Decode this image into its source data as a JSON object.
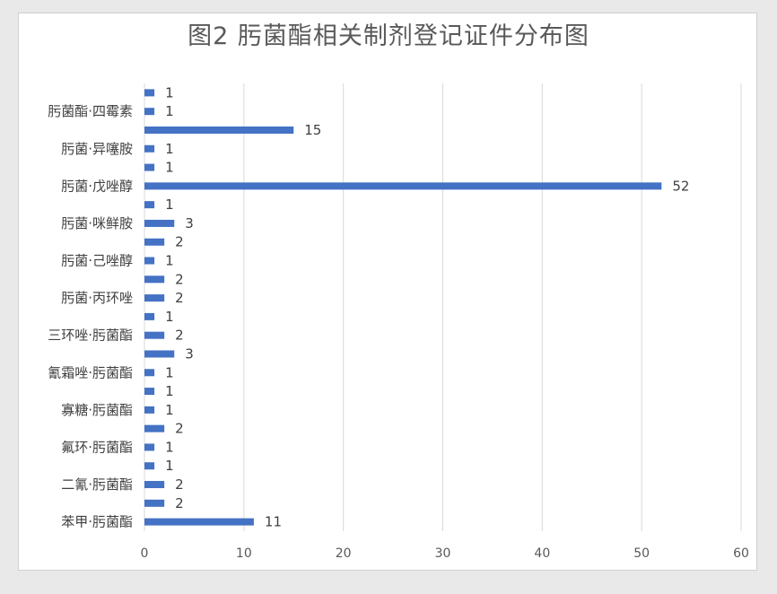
{
  "chart_data": {
    "type": "bar",
    "orientation": "horizontal",
    "title": "图2 肟菌酯相关制剂登记证件分布图",
    "xlim": [
      0,
      60
    ],
    "xticks": [
      0,
      10,
      20,
      30,
      40,
      50,
      60
    ],
    "grid": "vertical",
    "color": "#4472c4",
    "rows": [
      {
        "label": "",
        "value": 1
      },
      {
        "label": "肟菌酯·四霉素",
        "value": 1
      },
      {
        "label": "",
        "value": 15
      },
      {
        "label": "肟菌·异噻胺",
        "value": 1
      },
      {
        "label": "",
        "value": 1
      },
      {
        "label": "肟菌·戊唑醇",
        "value": 52
      },
      {
        "label": "",
        "value": 1
      },
      {
        "label": "肟菌·咪鲜胺",
        "value": 3
      },
      {
        "label": "",
        "value": 2
      },
      {
        "label": "肟菌·己唑醇",
        "value": 1
      },
      {
        "label": "",
        "value": 2
      },
      {
        "label": "肟菌·丙环唑",
        "value": 2
      },
      {
        "label": "",
        "value": 1
      },
      {
        "label": "三环唑·肟菌酯",
        "value": 2
      },
      {
        "label": "",
        "value": 3
      },
      {
        "label": "氰霜唑·肟菌酯",
        "value": 1
      },
      {
        "label": "",
        "value": 1
      },
      {
        "label": "寡糖·肟菌酯",
        "value": 1
      },
      {
        "label": "",
        "value": 2
      },
      {
        "label": "氟环·肟菌酯",
        "value": 1
      },
      {
        "label": "",
        "value": 1
      },
      {
        "label": "二氰·肟菌酯",
        "value": 2
      },
      {
        "label": "",
        "value": 2
      },
      {
        "label": "苯甲·肟菌酯",
        "value": 11
      }
    ]
  }
}
